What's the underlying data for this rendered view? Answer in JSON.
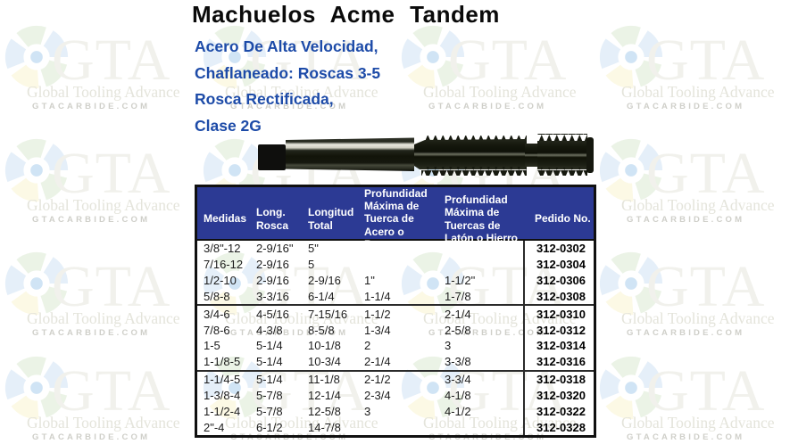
{
  "page": {
    "title": "Machuelos Acme Tandem",
    "subtitle_lines": [
      "Acero De Alta Velocidad,",
      "Chaflaneado: Roscas 3-5",
      "Rosca Rectificada,",
      "Clase 2G"
    ]
  },
  "watermark": {
    "brand": "GTA",
    "tagline": "Global Tooling Advance",
    "site": "GTACARBIDE.COM"
  },
  "product_image": {
    "description": "machuelo-acme-tandem-tap"
  },
  "table": {
    "headers": [
      "Medidas",
      "Long.\nRosca",
      "Longitud\nTotal",
      "Profundidad\nMáxima de\nTuerca de\nAcero o Bronce",
      "Profundidad\nMáxima de\nTuercas de\nLatón o Hierro",
      "Pedido No."
    ],
    "groups": [
      {
        "rows": [
          [
            "3/8\"-12",
            "2-9/16\"",
            "5\"",
            "",
            "",
            "312-0302"
          ],
          [
            "7/16-12",
            "2-9/16",
            "5",
            "",
            "",
            "312-0304"
          ],
          [
            "1/2-10",
            "2-9/16",
            "2-9/16",
            "1\"",
            "1-1/2\"",
            "312-0306"
          ],
          [
            "5/8-8",
            "3-3/16",
            "6-1/4",
            "1-1/4",
            "1-7/8",
            "312-0308"
          ]
        ]
      },
      {
        "rows": [
          [
            "3/4-6",
            "4-5/16",
            "7-15/16",
            "1-1/2",
            "2-1/4",
            "312-0310"
          ],
          [
            "7/8-6",
            "4-3/8",
            "8-5/8",
            "1-3/4",
            "2-5/8",
            "312-0312"
          ],
          [
            "1-5",
            "5-1/4",
            "10-1/8",
            "2",
            "3",
            "312-0314"
          ],
          [
            "1-1/8-5",
            "5-1/4",
            "10-3/4",
            "2-1/4",
            "3-3/8",
            "312-0316"
          ]
        ]
      },
      {
        "rows": [
          [
            "1-1/4-5",
            "5-1/4",
            "11-1/8",
            "2-1/2",
            "3-3/4",
            "312-0318"
          ],
          [
            "1-3/8-4",
            "5-7/8",
            "12-1/4",
            "2-3/4",
            "4-1/8",
            "312-0320"
          ],
          [
            "1-1/2-4",
            "5-7/8",
            "12-5/8",
            "3",
            "4-1/2",
            "312-0322"
          ],
          [
            "2\"-4",
            "6-1/2",
            "14-7/8",
            "",
            "",
            "312-0328"
          ]
        ]
      }
    ]
  },
  "colors": {
    "header_bg": "#2c3a94",
    "header_text": "#ffffff",
    "subtitle_blue": "#1d4ba8",
    "border_dark": "#101010"
  }
}
